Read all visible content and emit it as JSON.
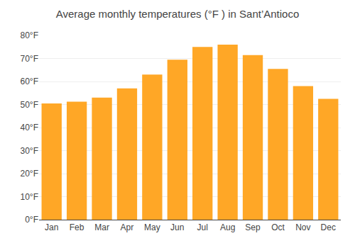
{
  "chart_data": {
    "type": "bar",
    "title": "Average monthly temperatures (°F ) in Sant’Antioco",
    "categories": [
      "Jan",
      "Feb",
      "Mar",
      "Apr",
      "May",
      "Jun",
      "Jul",
      "Aug",
      "Sep",
      "Oct",
      "Nov",
      "Dec"
    ],
    "values": [
      50.5,
      51.2,
      53.0,
      57.0,
      63.0,
      69.5,
      75.0,
      76.0,
      71.5,
      65.5,
      58.0,
      52.5
    ],
    "color": "#FFA726",
    "ylim": [
      0,
      80
    ],
    "yticks": [
      {
        "value": 0,
        "label": "0°F"
      },
      {
        "value": 10,
        "label": "10°F"
      },
      {
        "value": 20,
        "label": "20°F"
      },
      {
        "value": 30,
        "label": "30°F"
      },
      {
        "value": 40,
        "label": "40°F"
      },
      {
        "value": 50,
        "label": "50°F"
      },
      {
        "value": 60,
        "label": "60°F"
      },
      {
        "value": 70,
        "label": "70°F"
      },
      {
        "value": 80,
        "label": "80°F"
      }
    ],
    "grid": true
  }
}
